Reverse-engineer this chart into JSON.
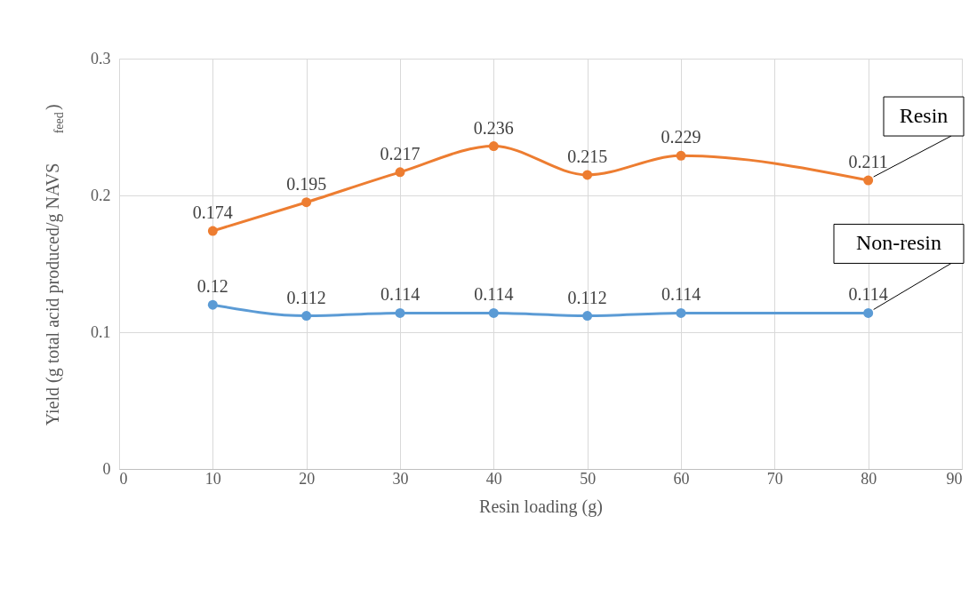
{
  "chart_data": {
    "type": "line",
    "xlabel": "Resin loading (g)",
    "ylabel": "Yield (g total acid produced/g NAVS$_{feed}$)",
    "x": [
      10,
      20,
      30,
      40,
      50,
      60,
      80
    ],
    "series": [
      {
        "name": "Resin",
        "color": "#ed7d31",
        "values": [
          0.174,
          0.195,
          0.217,
          0.236,
          0.215,
          0.229,
          0.211
        ]
      },
      {
        "name": "Non-resin",
        "color": "#5b9bd5",
        "values": [
          0.12,
          0.112,
          0.114,
          0.114,
          0.112,
          0.114,
          0.114
        ]
      }
    ],
    "xlim": [
      0,
      90
    ],
    "xticks": [
      0,
      10,
      20,
      30,
      40,
      50,
      60,
      70,
      80,
      90
    ],
    "ylim": [
      0,
      0.3
    ],
    "yticks": [
      0,
      0.1,
      0.2,
      0.3
    ],
    "grid": true,
    "legend": false,
    "marker": "circle",
    "line_style": "solid",
    "data_labels": true
  }
}
